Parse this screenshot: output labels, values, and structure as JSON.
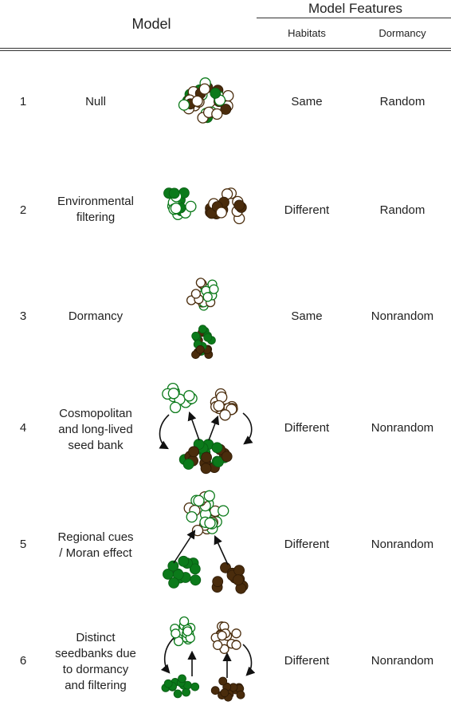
{
  "header": {
    "model": "Model",
    "features": "Model Features",
    "habitats": "Habitats",
    "dormancy": "Dormancy"
  },
  "rows": [
    {
      "num": "1",
      "name": "Null",
      "habitats": "Same",
      "dormancy": "Random"
    },
    {
      "num": "2",
      "name": "Environmental\nfiltering",
      "habitats": "Different",
      "dormancy": "Random"
    },
    {
      "num": "3",
      "name": "Dormancy",
      "habitats": "Same",
      "dormancy": "Nonrandom"
    },
    {
      "num": "4",
      "name": "Cosmopolitan\nand long-lived\nseed bank",
      "habitats": "Different",
      "dormancy": "Nonrandom"
    },
    {
      "num": "5",
      "name": "Regional cues\n/ Moran effect",
      "habitats": "Different",
      "dormancy": "Nonrandom"
    },
    {
      "num": "6",
      "name": "Distinct\nseedbanks due\nto dormancy\nand filtering",
      "habitats": "Different",
      "dormancy": "Nonrandom"
    }
  ],
  "colors": {
    "green": "#0b7a1a",
    "brown": "#4a2c0c",
    "green_outline": "#0b7a1a",
    "brown_outline": "#4a2c0c",
    "arrow": "#111111"
  }
}
